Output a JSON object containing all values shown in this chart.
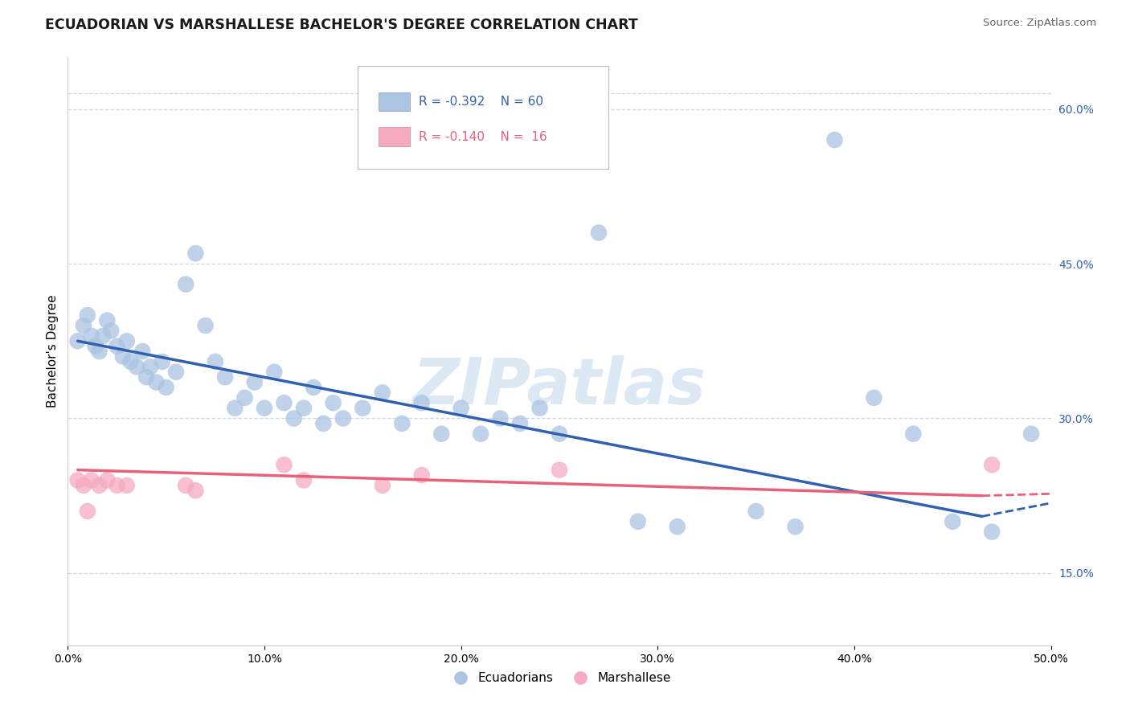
{
  "title": "ECUADORIAN VS MARSHALLESE BACHELOR'S DEGREE CORRELATION CHART",
  "source_text": "Source: ZipAtlas.com",
  "ylabel": "Bachelor's Degree",
  "xlim": [
    0.0,
    0.5
  ],
  "ylim": [
    0.08,
    0.65
  ],
  "xtick_labels": [
    "0.0%",
    "10.0%",
    "20.0%",
    "30.0%",
    "40.0%",
    "50.0%"
  ],
  "xtick_values": [
    0.0,
    0.1,
    0.2,
    0.3,
    0.4,
    0.5
  ],
  "ytick_labels_right": [
    "15.0%",
    "30.0%",
    "45.0%",
    "60.0%"
  ],
  "ytick_values_right": [
    0.15,
    0.3,
    0.45,
    0.6
  ],
  "blue_color": "#aac4e2",
  "pink_color": "#f5aabf",
  "blue_line_color": "#3060b0",
  "pink_line_color": "#e8607a",
  "grid_color": "#c8d8ec",
  "watermark_color": "#dce8f4",
  "legend_R1": "R = -0.392",
  "legend_N1": "N = 60",
  "legend_R2": "R = -0.140",
  "legend_N2": "N =  16",
  "blue_scatter_x": [
    0.005,
    0.008,
    0.01,
    0.012,
    0.014,
    0.016,
    0.018,
    0.02,
    0.022,
    0.025,
    0.028,
    0.03,
    0.032,
    0.035,
    0.038,
    0.04,
    0.042,
    0.045,
    0.048,
    0.05,
    0.055,
    0.06,
    0.065,
    0.07,
    0.075,
    0.08,
    0.085,
    0.09,
    0.095,
    0.1,
    0.105,
    0.11,
    0.115,
    0.12,
    0.125,
    0.13,
    0.135,
    0.14,
    0.15,
    0.16,
    0.17,
    0.18,
    0.19,
    0.2,
    0.21,
    0.22,
    0.23,
    0.24,
    0.25,
    0.27,
    0.29,
    0.31,
    0.35,
    0.37,
    0.39,
    0.41,
    0.43,
    0.45,
    0.47,
    0.49
  ],
  "blue_scatter_y": [
    0.375,
    0.39,
    0.4,
    0.38,
    0.37,
    0.365,
    0.38,
    0.395,
    0.385,
    0.37,
    0.36,
    0.375,
    0.355,
    0.35,
    0.365,
    0.34,
    0.35,
    0.335,
    0.355,
    0.33,
    0.345,
    0.43,
    0.46,
    0.39,
    0.355,
    0.34,
    0.31,
    0.32,
    0.335,
    0.31,
    0.345,
    0.315,
    0.3,
    0.31,
    0.33,
    0.295,
    0.315,
    0.3,
    0.31,
    0.325,
    0.295,
    0.315,
    0.285,
    0.31,
    0.285,
    0.3,
    0.295,
    0.31,
    0.285,
    0.48,
    0.2,
    0.195,
    0.21,
    0.195,
    0.57,
    0.32,
    0.285,
    0.2,
    0.19,
    0.285
  ],
  "pink_scatter_x": [
    0.005,
    0.008,
    0.01,
    0.012,
    0.016,
    0.02,
    0.025,
    0.03,
    0.06,
    0.065,
    0.11,
    0.12,
    0.16,
    0.18,
    0.25,
    0.47
  ],
  "pink_scatter_y": [
    0.24,
    0.235,
    0.21,
    0.24,
    0.235,
    0.24,
    0.235,
    0.235,
    0.235,
    0.23,
    0.255,
    0.24,
    0.235,
    0.245,
    0.25,
    0.255
  ],
  "blue_line_x0": 0.005,
  "blue_line_x1": 0.465,
  "blue_line_y0": 0.375,
  "blue_line_y1": 0.205,
  "pink_line_x0": 0.005,
  "pink_line_x1": 0.465,
  "pink_line_y0": 0.25,
  "pink_line_y1": 0.225,
  "figsize": [
    14.06,
    8.92
  ],
  "dpi": 100
}
